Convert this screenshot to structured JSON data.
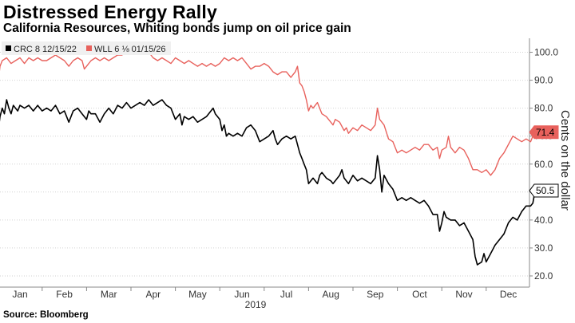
{
  "title": "Distressed Energy Rally",
  "subtitle": "California Resources, Whiting bonds jump on oil price gain",
  "source": "Source: Bloomberg",
  "colors": {
    "crc": "#000000",
    "wll": "#e8615c",
    "grid": "#d2d2d2",
    "legend_bg": "#f0f0f0"
  },
  "chart_data": {
    "type": "line",
    "title": "Distressed Energy Rally",
    "subtitle": "California Resources, Whiting bonds jump on oil price gain",
    "ylabel": "Cents on the dollar",
    "xlabel": "2019",
    "ylim": [
      16,
      105
    ],
    "yticks": [
      20.0,
      30.0,
      40.0,
      50.0,
      60.0,
      70.0,
      80.0,
      90.0,
      100.0
    ],
    "ytick_labels": [
      "20.0",
      "30.0",
      "40.0",
      "50.0",
      "60.0",
      "70.0",
      "80.0",
      "90.0",
      "100.0"
    ],
    "xlim": [
      0.5,
      12.6
    ],
    "month_labels": [
      "Jan",
      "Feb",
      "Mar",
      "Apr",
      "May",
      "Jun",
      "Jul",
      "Aug",
      "Sep",
      "Oct",
      "Nov",
      "Dec"
    ],
    "year_label": "2019",
    "legend_position": "top-left",
    "series": [
      {
        "name": "CRC 8 12/15/22",
        "color": "#000000",
        "last_label": "50.5",
        "points": [
          [
            0.5,
            70.5
          ],
          [
            0.55,
            77
          ],
          [
            0.6,
            80
          ],
          [
            0.65,
            78
          ],
          [
            0.7,
            83
          ],
          [
            0.75,
            80
          ],
          [
            0.8,
            78
          ],
          [
            0.85,
            81
          ],
          [
            0.9,
            80
          ],
          [
            0.95,
            79
          ],
          [
            1.0,
            81
          ],
          [
            1.1,
            80
          ],
          [
            1.2,
            81
          ],
          [
            1.3,
            79
          ],
          [
            1.4,
            81
          ],
          [
            1.5,
            79
          ],
          [
            1.6,
            80
          ],
          [
            1.7,
            79
          ],
          [
            1.8,
            81
          ],
          [
            1.9,
            78
          ],
          [
            2.0,
            79
          ],
          [
            2.1,
            75
          ],
          [
            2.2,
            79
          ],
          [
            2.3,
            80
          ],
          [
            2.4,
            78
          ],
          [
            2.5,
            76
          ],
          [
            2.55,
            79
          ],
          [
            2.6,
            78
          ],
          [
            2.7,
            78
          ],
          [
            2.8,
            75
          ],
          [
            2.9,
            78
          ],
          [
            3.0,
            80
          ],
          [
            3.1,
            78
          ],
          [
            3.2,
            81
          ],
          [
            3.3,
            80
          ],
          [
            3.4,
            82
          ],
          [
            3.5,
            80
          ],
          [
            3.6,
            81
          ],
          [
            3.7,
            82
          ],
          [
            3.8,
            81
          ],
          [
            3.9,
            83
          ],
          [
            4.0,
            81
          ],
          [
            4.1,
            82
          ],
          [
            4.2,
            83
          ],
          [
            4.3,
            81
          ],
          [
            4.4,
            80
          ],
          [
            4.5,
            76
          ],
          [
            4.6,
            78
          ],
          [
            4.65,
            74
          ],
          [
            4.7,
            77
          ],
          [
            4.8,
            76
          ],
          [
            4.9,
            77
          ],
          [
            5.0,
            75
          ],
          [
            5.1,
            76
          ],
          [
            5.2,
            77
          ],
          [
            5.3,
            79
          ],
          [
            5.35,
            80
          ],
          [
            5.4,
            78
          ],
          [
            5.5,
            76
          ],
          [
            5.55,
            72
          ],
          [
            5.6,
            74
          ],
          [
            5.65,
            70
          ],
          [
            5.7,
            71
          ],
          [
            5.8,
            70
          ],
          [
            5.9,
            71
          ],
          [
            6.0,
            70
          ],
          [
            6.1,
            73
          ],
          [
            6.2,
            74
          ],
          [
            6.3,
            72
          ],
          [
            6.4,
            68
          ],
          [
            6.5,
            69
          ],
          [
            6.6,
            70
          ],
          [
            6.7,
            72
          ],
          [
            6.75,
            69
          ],
          [
            6.8,
            67
          ],
          [
            6.9,
            69
          ],
          [
            7.0,
            70
          ],
          [
            7.1,
            69
          ],
          [
            7.2,
            70
          ],
          [
            7.25,
            67
          ],
          [
            7.3,
            64
          ],
          [
            7.35,
            62
          ],
          [
            7.4,
            60
          ],
          [
            7.45,
            58
          ],
          [
            7.5,
            53
          ],
          [
            7.6,
            55
          ],
          [
            7.7,
            53
          ],
          [
            7.75,
            56
          ],
          [
            7.8,
            57
          ],
          [
            7.9,
            55
          ],
          [
            8.0,
            54
          ],
          [
            8.05,
            53
          ],
          [
            8.1,
            54
          ],
          [
            8.2,
            56
          ],
          [
            8.25,
            58
          ],
          [
            8.3,
            55
          ],
          [
            8.4,
            53
          ],
          [
            8.5,
            56
          ],
          [
            8.6,
            54
          ],
          [
            8.7,
            55
          ],
          [
            8.8,
            54
          ],
          [
            8.9,
            53
          ],
          [
            9.0,
            55
          ],
          [
            9.05,
            63
          ],
          [
            9.1,
            58
          ],
          [
            9.15,
            50
          ],
          [
            9.2,
            56
          ],
          [
            9.3,
            53
          ],
          [
            9.4,
            51
          ],
          [
            9.5,
            47
          ],
          [
            9.6,
            48
          ],
          [
            9.7,
            47
          ],
          [
            9.8,
            48
          ],
          [
            9.9,
            47
          ],
          [
            10.0,
            46
          ],
          [
            10.1,
            47
          ],
          [
            10.2,
            45
          ],
          [
            10.3,
            42
          ],
          [
            10.4,
            42
          ],
          [
            10.45,
            36
          ],
          [
            10.5,
            39
          ],
          [
            10.55,
            43
          ],
          [
            10.6,
            41
          ],
          [
            10.7,
            40
          ],
          [
            10.8,
            40
          ],
          [
            10.9,
            38
          ],
          [
            11.0,
            39
          ],
          [
            11.1,
            36
          ],
          [
            11.2,
            33
          ],
          [
            11.25,
            27
          ],
          [
            11.3,
            24
          ],
          [
            11.4,
            25
          ],
          [
            11.45,
            28
          ],
          [
            11.5,
            25
          ],
          [
            11.6,
            28
          ],
          [
            11.7,
            31
          ],
          [
            11.8,
            33
          ],
          [
            11.9,
            35
          ],
          [
            12.0,
            39
          ],
          [
            12.1,
            41
          ],
          [
            12.2,
            40
          ],
          [
            12.3,
            43
          ],
          [
            12.4,
            45
          ],
          [
            12.5,
            45
          ],
          [
            12.55,
            46
          ],
          [
            12.6,
            50.5
          ]
        ]
      },
      {
        "name": "WLL 6 ⅛ 01/15/26",
        "color": "#e8615c",
        "last_label": "71.4",
        "points": [
          [
            0.5,
            88
          ],
          [
            0.55,
            95
          ],
          [
            0.6,
            97
          ],
          [
            0.7,
            98
          ],
          [
            0.8,
            96
          ],
          [
            0.9,
            97
          ],
          [
            1.0,
            98
          ],
          [
            1.1,
            96
          ],
          [
            1.2,
            98
          ],
          [
            1.3,
            97
          ],
          [
            1.4,
            98
          ],
          [
            1.5,
            97
          ],
          [
            1.6,
            97
          ],
          [
            1.7,
            98
          ],
          [
            1.8,
            99
          ],
          [
            1.9,
            98
          ],
          [
            2.0,
            97
          ],
          [
            2.1,
            95
          ],
          [
            2.2,
            97
          ],
          [
            2.3,
            98
          ],
          [
            2.4,
            97
          ],
          [
            2.45,
            94
          ],
          [
            2.5,
            95
          ],
          [
            2.6,
            97
          ],
          [
            2.7,
            98
          ],
          [
            2.8,
            97
          ],
          [
            2.9,
            98
          ],
          [
            3.0,
            97
          ],
          [
            3.1,
            98
          ],
          [
            3.2,
            99
          ],
          [
            3.3,
            99
          ],
          [
            3.4,
            101
          ],
          [
            3.5,
            100
          ],
          [
            3.6,
            101
          ],
          [
            3.7,
            100
          ],
          [
            3.8,
            101
          ],
          [
            3.9,
            100
          ],
          [
            4.0,
            98
          ],
          [
            4.1,
            97
          ],
          [
            4.2,
            98
          ],
          [
            4.3,
            97
          ],
          [
            4.4,
            96
          ],
          [
            4.5,
            98
          ],
          [
            4.6,
            97
          ],
          [
            4.7,
            96
          ],
          [
            4.8,
            97
          ],
          [
            4.9,
            96
          ],
          [
            5.0,
            95
          ],
          [
            5.1,
            96
          ],
          [
            5.2,
            95
          ],
          [
            5.3,
            96
          ],
          [
            5.4,
            95
          ],
          [
            5.5,
            96
          ],
          [
            5.6,
            98
          ],
          [
            5.7,
            97
          ],
          [
            5.8,
            98
          ],
          [
            5.9,
            97
          ],
          [
            6.0,
            98
          ],
          [
            6.1,
            96
          ],
          [
            6.2,
            94
          ],
          [
            6.3,
            95
          ],
          [
            6.4,
            95
          ],
          [
            6.5,
            96
          ],
          [
            6.6,
            95
          ],
          [
            6.7,
            93
          ],
          [
            6.8,
            92
          ],
          [
            6.9,
            93
          ],
          [
            7.0,
            93
          ],
          [
            7.05,
            92
          ],
          [
            7.1,
            91
          ],
          [
            7.2,
            93
          ],
          [
            7.25,
            95
          ],
          [
            7.3,
            89
          ],
          [
            7.35,
            88
          ],
          [
            7.4,
            86
          ],
          [
            7.45,
            83
          ],
          [
            7.5,
            79
          ],
          [
            7.55,
            81
          ],
          [
            7.6,
            80
          ],
          [
            7.7,
            82
          ],
          [
            7.8,
            78
          ],
          [
            7.9,
            77
          ],
          [
            8.0,
            75
          ],
          [
            8.05,
            74
          ],
          [
            8.1,
            76
          ],
          [
            8.2,
            75
          ],
          [
            8.3,
            72
          ],
          [
            8.35,
            73
          ],
          [
            8.4,
            71
          ],
          [
            8.5,
            73
          ],
          [
            8.6,
            72
          ],
          [
            8.7,
            74
          ],
          [
            8.8,
            73
          ],
          [
            8.9,
            72
          ],
          [
            9.0,
            74
          ],
          [
            9.05,
            80
          ],
          [
            9.1,
            76
          ],
          [
            9.2,
            74
          ],
          [
            9.3,
            69
          ],
          [
            9.4,
            68
          ],
          [
            9.5,
            64
          ],
          [
            9.6,
            65
          ],
          [
            9.7,
            64
          ],
          [
            9.8,
            65
          ],
          [
            9.9,
            66
          ],
          [
            10.0,
            65
          ],
          [
            10.1,
            67
          ],
          [
            10.2,
            67
          ],
          [
            10.3,
            65
          ],
          [
            10.4,
            66
          ],
          [
            10.45,
            62
          ],
          [
            10.5,
            65
          ],
          [
            10.6,
            66
          ],
          [
            10.65,
            70
          ],
          [
            10.7,
            66
          ],
          [
            10.8,
            64
          ],
          [
            10.9,
            66
          ],
          [
            11.0,
            65
          ],
          [
            11.1,
            62
          ],
          [
            11.2,
            58
          ],
          [
            11.3,
            58
          ],
          [
            11.4,
            57
          ],
          [
            11.5,
            58
          ],
          [
            11.6,
            56
          ],
          [
            11.7,
            58
          ],
          [
            11.8,
            62
          ],
          [
            11.9,
            64
          ],
          [
            12.0,
            67
          ],
          [
            12.1,
            70
          ],
          [
            12.2,
            69
          ],
          [
            12.3,
            68
          ],
          [
            12.4,
            69
          ],
          [
            12.5,
            68
          ],
          [
            12.55,
            70
          ],
          [
            12.6,
            71.4
          ]
        ]
      }
    ]
  }
}
